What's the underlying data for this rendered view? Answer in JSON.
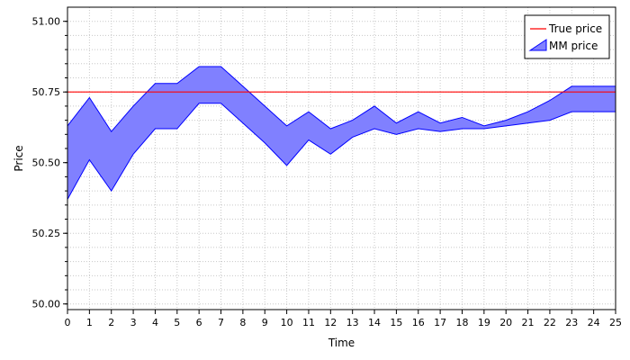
{
  "chart_data": {
    "type": "area",
    "title": "",
    "xlabel": "Time",
    "ylabel": "Price",
    "xlim": [
      0,
      25
    ],
    "ylim": [
      49.98,
      51.05
    ],
    "x_ticks": [
      0,
      1,
      2,
      3,
      4,
      5,
      6,
      7,
      8,
      9,
      10,
      11,
      12,
      13,
      14,
      15,
      16,
      17,
      18,
      19,
      20,
      21,
      22,
      23,
      24,
      25
    ],
    "y_ticks": [
      50.0,
      50.25,
      50.5,
      50.75,
      51.0
    ],
    "y_tick_labels": [
      "50.00",
      "50.25",
      "50.50",
      "50.75",
      "51.00"
    ],
    "grid": true,
    "legend_position": "top-right",
    "series": [
      {
        "name": "True price",
        "kind": "line",
        "color": "#ff0000",
        "x": [
          0,
          25
        ],
        "values": [
          50.75,
          50.75
        ]
      },
      {
        "name": "MM price",
        "kind": "band",
        "color": "#0000ff",
        "fill": "#8080ff",
        "x": [
          0,
          1,
          2,
          3,
          4,
          5,
          6,
          7,
          8,
          9,
          10,
          11,
          12,
          13,
          14,
          15,
          16,
          17,
          18,
          19,
          20,
          21,
          22,
          23,
          24,
          25
        ],
        "upper": [
          50.63,
          50.73,
          50.61,
          50.7,
          50.78,
          50.78,
          50.84,
          50.84,
          50.77,
          50.7,
          50.63,
          50.68,
          50.62,
          50.65,
          50.7,
          50.64,
          50.68,
          50.64,
          50.66,
          50.63,
          50.65,
          50.68,
          50.72,
          50.77,
          50.77,
          50.77
        ],
        "lower": [
          50.37,
          50.51,
          50.4,
          50.53,
          50.62,
          50.62,
          50.71,
          50.71,
          50.64,
          50.57,
          50.49,
          50.58,
          50.53,
          50.59,
          50.62,
          50.6,
          50.62,
          50.61,
          50.62,
          50.62,
          50.63,
          50.64,
          50.65,
          50.68,
          50.68,
          50.68
        ]
      }
    ]
  }
}
